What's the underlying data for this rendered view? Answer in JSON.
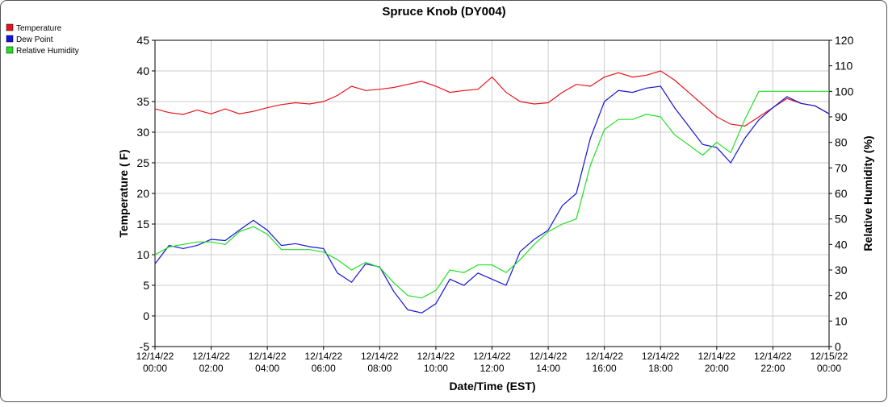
{
  "chart_data": {
    "type": "line",
    "title": "Spruce Knob (DY004)",
    "x_label": "Date/Time (EST)",
    "y_label": "Temperature ( F)",
    "y2_label": "Relative Humidity (%)",
    "x": [
      "12/14/22 00:00",
      "12/14/22 00:30",
      "12/14/22 01:00",
      "12/14/22 01:30",
      "12/14/22 02:00",
      "12/14/22 02:30",
      "12/14/22 03:00",
      "12/14/22 03:30",
      "12/14/22 04:00",
      "12/14/22 04:30",
      "12/14/22 05:00",
      "12/14/22 05:30",
      "12/14/22 06:00",
      "12/14/22 06:30",
      "12/14/22 07:00",
      "12/14/22 07:30",
      "12/14/22 08:00",
      "12/14/22 08:30",
      "12/14/22 09:00",
      "12/14/22 09:30",
      "12/14/22 10:00",
      "12/14/22 10:30",
      "12/14/22 11:00",
      "12/14/22 11:30",
      "12/14/22 12:00",
      "12/14/22 12:30",
      "12/14/22 13:00",
      "12/14/22 13:30",
      "12/14/22 14:00",
      "12/14/22 14:30",
      "12/14/22 15:00",
      "12/14/22 15:30",
      "12/14/22 16:00",
      "12/14/22 16:30",
      "12/14/22 17:00",
      "12/14/22 17:30",
      "12/14/22 18:00",
      "12/14/22 18:30",
      "12/14/22 19:00",
      "12/14/22 19:30",
      "12/14/22 20:00",
      "12/14/22 20:30",
      "12/14/22 21:00",
      "12/14/22 21:30",
      "12/14/22 22:00",
      "12/14/22 22:30",
      "12/14/22 23:00",
      "12/14/22 23:30",
      "12/15/22 00:00"
    ],
    "series": [
      {
        "name": "Temperature",
        "color": "#e8141a",
        "values": [
          33.8,
          33.2,
          32.9,
          33.6,
          33.0,
          33.8,
          33.0,
          33.4,
          34.0,
          34.5,
          34.8,
          34.6,
          35.0,
          36.0,
          37.5,
          36.8,
          37.0,
          37.3,
          37.8,
          38.3,
          37.5,
          36.5,
          36.8,
          37.0,
          39.0,
          36.5,
          35.0,
          34.6,
          34.8,
          36.5,
          37.8,
          37.5,
          39.0,
          39.7,
          39.0,
          39.3,
          40.0,
          38.5,
          36.5,
          34.5,
          32.5,
          31.3,
          31.0,
          32.5,
          34.0,
          35.5,
          34.7,
          34.3,
          33.0
        ]
      },
      {
        "name": "Dew Point",
        "color": "#1414d8",
        "values": [
          8.5,
          11.5,
          11.0,
          11.5,
          12.5,
          12.3,
          14.0,
          15.6,
          14.0,
          11.5,
          11.8,
          11.3,
          11.0,
          7.0,
          5.5,
          8.5,
          8.0,
          4.0,
          1.0,
          0.5,
          2.0,
          6.0,
          5.0,
          7.0,
          6.0,
          5.0,
          10.5,
          12.5,
          14.0,
          18.0,
          20.0,
          29.0,
          35.0,
          36.8,
          36.5,
          37.2,
          37.5,
          34.0,
          31.0,
          28.0,
          27.5,
          25.0,
          29.0,
          32.0,
          34.0,
          35.8,
          34.7,
          34.3,
          33.0
        ]
      },
      {
        "name": "Relative Humidity",
        "color": "#22e022",
        "axis": "y2",
        "values": [
          36,
          39,
          40,
          41,
          41,
          40,
          45,
          47,
          44,
          38,
          38,
          38,
          37,
          34,
          30,
          33,
          31,
          25,
          20,
          19,
          22,
          30,
          29,
          32,
          32,
          29,
          34,
          40,
          45,
          48,
          50,
          71,
          85,
          89,
          89,
          91,
          90,
          83,
          79,
          75,
          80,
          76,
          89,
          100,
          100,
          100,
          100,
          100,
          100
        ]
      }
    ],
    "xlim": [
      "12/14/22 00:00",
      "12/15/22 00:00"
    ],
    "xticks": [
      "12/14/22 00:00",
      "12/14/22 02:00",
      "12/14/22 04:00",
      "12/14/22 06:00",
      "12/14/22 08:00",
      "12/14/22 10:00",
      "12/14/22 12:00",
      "12/14/22 14:00",
      "12/14/22 16:00",
      "12/14/22 18:00",
      "12/14/22 20:00",
      "12/14/22 22:00",
      "12/15/22 00:00"
    ],
    "ylim": [
      -5,
      45
    ],
    "yticks": [
      -5,
      0,
      5,
      10,
      15,
      20,
      25,
      30,
      35,
      40,
      45
    ],
    "y2lim": [
      0,
      120
    ],
    "y2ticks": [
      0,
      10,
      20,
      30,
      40,
      50,
      60,
      70,
      80,
      90,
      100,
      110,
      120
    ],
    "grid": true,
    "legend": "top-left"
  }
}
